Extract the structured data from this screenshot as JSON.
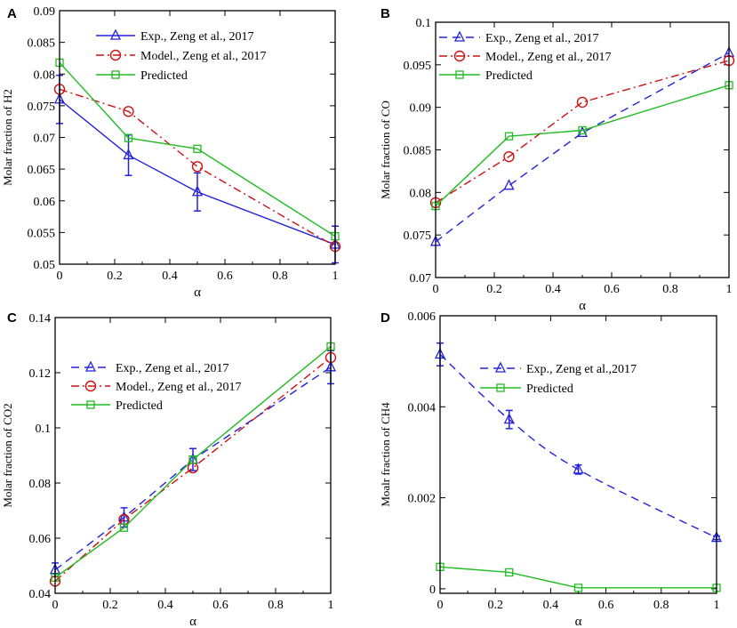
{
  "chart_data": [
    {
      "panel": "A",
      "type": "line",
      "xlabel": "α",
      "ylabel": "Molar fraction of H2",
      "xlim": [
        0,
        1
      ],
      "ylim": [
        0.05,
        0.09
      ],
      "xticks": [
        0,
        0.2,
        0.4,
        0.6,
        0.8,
        1
      ],
      "xtick_labels": [
        "0",
        "0.2",
        "0.4",
        "0.6",
        "0.8",
        "1"
      ],
      "yticks": [
        0.05,
        0.055,
        0.06,
        0.065,
        0.07,
        0.075,
        0.08,
        0.085,
        0.09
      ],
      "ytick_labels": [
        "0.05",
        "0.055",
        "0.06",
        "0.065",
        "0.07",
        "0.075",
        "0.08",
        "0.085",
        "0.09"
      ],
      "legend_position": "top-center",
      "series": [
        {
          "name": "Exp., Zeng et al., 2017",
          "x": [
            0,
            0.25,
            0.5,
            1
          ],
          "values": [
            0.076,
            0.0672,
            0.0614,
            0.0531
          ],
          "errors": [
            0.0038,
            0.0032,
            0.003,
            0.0029
          ],
          "color": "#2222dd",
          "marker": "triangle",
          "dash": "solid"
        },
        {
          "name": "Model., Zeng et al., 2017",
          "x": [
            0,
            0.25,
            0.5,
            1
          ],
          "values": [
            0.0776,
            0.0741,
            0.0654,
            0.0528
          ],
          "color": "#cc1111",
          "marker": "circle",
          "dash": "dashdot"
        },
        {
          "name": "Predicted",
          "x": [
            0,
            0.25,
            0.5,
            1
          ],
          "values": [
            0.0818,
            0.0699,
            0.0682,
            0.0544
          ],
          "color": "#22bb22",
          "marker": "square",
          "dash": "solid"
        }
      ]
    },
    {
      "panel": "B",
      "type": "line",
      "xlabel": "α",
      "ylabel": "Molar fraction of CO",
      "xlim": [
        0,
        1
      ],
      "ylim": [
        0.07,
        0.1
      ],
      "xticks": [
        0,
        0.2,
        0.4,
        0.6,
        0.8,
        1
      ],
      "xtick_labels": [
        "0",
        "0.2",
        "0.4",
        "0.6",
        "0.8",
        "1"
      ],
      "yticks": [
        0.07,
        0.075,
        0.08,
        0.085,
        0.09,
        0.095,
        0.1
      ],
      "ytick_labels": [
        "0.07",
        "0.075",
        "0.08",
        "0.085",
        "0.09",
        "0.095",
        "0.1"
      ],
      "legend_position": "top-center",
      "series": [
        {
          "name": "Exp., Zeng et al., 2017",
          "x": [
            0,
            0.25,
            0.5,
            1
          ],
          "values": [
            0.0742,
            0.0808,
            0.087,
            0.0964
          ],
          "color": "#2222dd",
          "marker": "triangle",
          "dash": "dashed"
        },
        {
          "name": "Model., Zeng et al., 2017",
          "x": [
            0,
            0.25,
            0.5,
            1
          ],
          "values": [
            0.0788,
            0.0842,
            0.0906,
            0.0955
          ],
          "color": "#cc1111",
          "marker": "circle",
          "dash": "dashdot"
        },
        {
          "name": "Predicted",
          "x": [
            0,
            0.25,
            0.5,
            1
          ],
          "values": [
            0.0784,
            0.0866,
            0.0873,
            0.0926
          ],
          "color": "#22bb22",
          "marker": "square",
          "dash": "solid"
        }
      ]
    },
    {
      "panel": "C",
      "type": "line",
      "xlabel": "α",
      "ylabel": "Molar fraction of CO2",
      "xlim": [
        0,
        1
      ],
      "ylim": [
        0.04,
        0.14
      ],
      "xticks": [
        0,
        0.2,
        0.4,
        0.6,
        0.8,
        1
      ],
      "xtick_labels": [
        "0",
        "0.2",
        "0.4",
        "0.6",
        "0.8",
        "1"
      ],
      "yticks": [
        0.04,
        0.06,
        0.08,
        0.1,
        0.12,
        0.14
      ],
      "ytick_labels": [
        "0.04",
        "0.06",
        "0.08",
        "0.1",
        "0.12",
        "0.14"
      ],
      "legend_position": "top-left",
      "series": [
        {
          "name": "Exp., Zeng et al., 2017",
          "x": [
            0,
            0.25,
            0.5,
            1
          ],
          "values": [
            0.0485,
            0.0675,
            0.0885,
            0.122
          ],
          "errors": [
            0.0025,
            0.0035,
            0.004,
            0.006
          ],
          "color": "#2222dd",
          "marker": "triangle",
          "dash": "dashed"
        },
        {
          "name": "Model., Zeng et al., 2017",
          "x": [
            0,
            0.25,
            0.5,
            1
          ],
          "values": [
            0.0444,
            0.0668,
            0.0855,
            0.1255
          ],
          "color": "#cc1111",
          "marker": "circle",
          "dash": "dashdot"
        },
        {
          "name": "Predicted",
          "x": [
            0,
            0.25,
            0.5,
            1
          ],
          "values": [
            0.0457,
            0.0638,
            0.0885,
            0.1295
          ],
          "color": "#22bb22",
          "marker": "square",
          "dash": "solid"
        }
      ]
    },
    {
      "panel": "D",
      "type": "line",
      "xlabel": "α",
      "ylabel": "Moalr fraction of CH4",
      "xlim": [
        0,
        1
      ],
      "ylim": [
        -0.0001,
        0.006
      ],
      "xticks": [
        0,
        0.2,
        0.4,
        0.6,
        0.8,
        1
      ],
      "xtick_labels": [
        "0",
        "0.2",
        "0.4",
        "0.6",
        "0.8",
        "1"
      ],
      "yticks": [
        0,
        0.002,
        0.004,
        0.006
      ],
      "ytick_labels": [
        "0",
        "0.002",
        "0.004",
        "0.006"
      ],
      "legend_position": "top-center",
      "series": [
        {
          "name": "Exp., Zeng et al.,2017",
          "x": [
            0,
            0.25,
            0.5,
            1
          ],
          "values": [
            0.00515,
            0.00372,
            0.00262,
            0.00112
          ],
          "errors": [
            0.00025,
            0.0002,
            0.0001,
            4e-05
          ],
          "color": "#2222dd",
          "marker": "triangle",
          "dash": "dashed",
          "smooth": true
        },
        {
          "name": "Predicted",
          "x": [
            0,
            0.25,
            0.5,
            1
          ],
          "values": [
            0.00048,
            0.00036,
            2e-05,
            2e-05
          ],
          "color": "#22bb22",
          "marker": "square",
          "dash": "solid"
        }
      ]
    }
  ]
}
